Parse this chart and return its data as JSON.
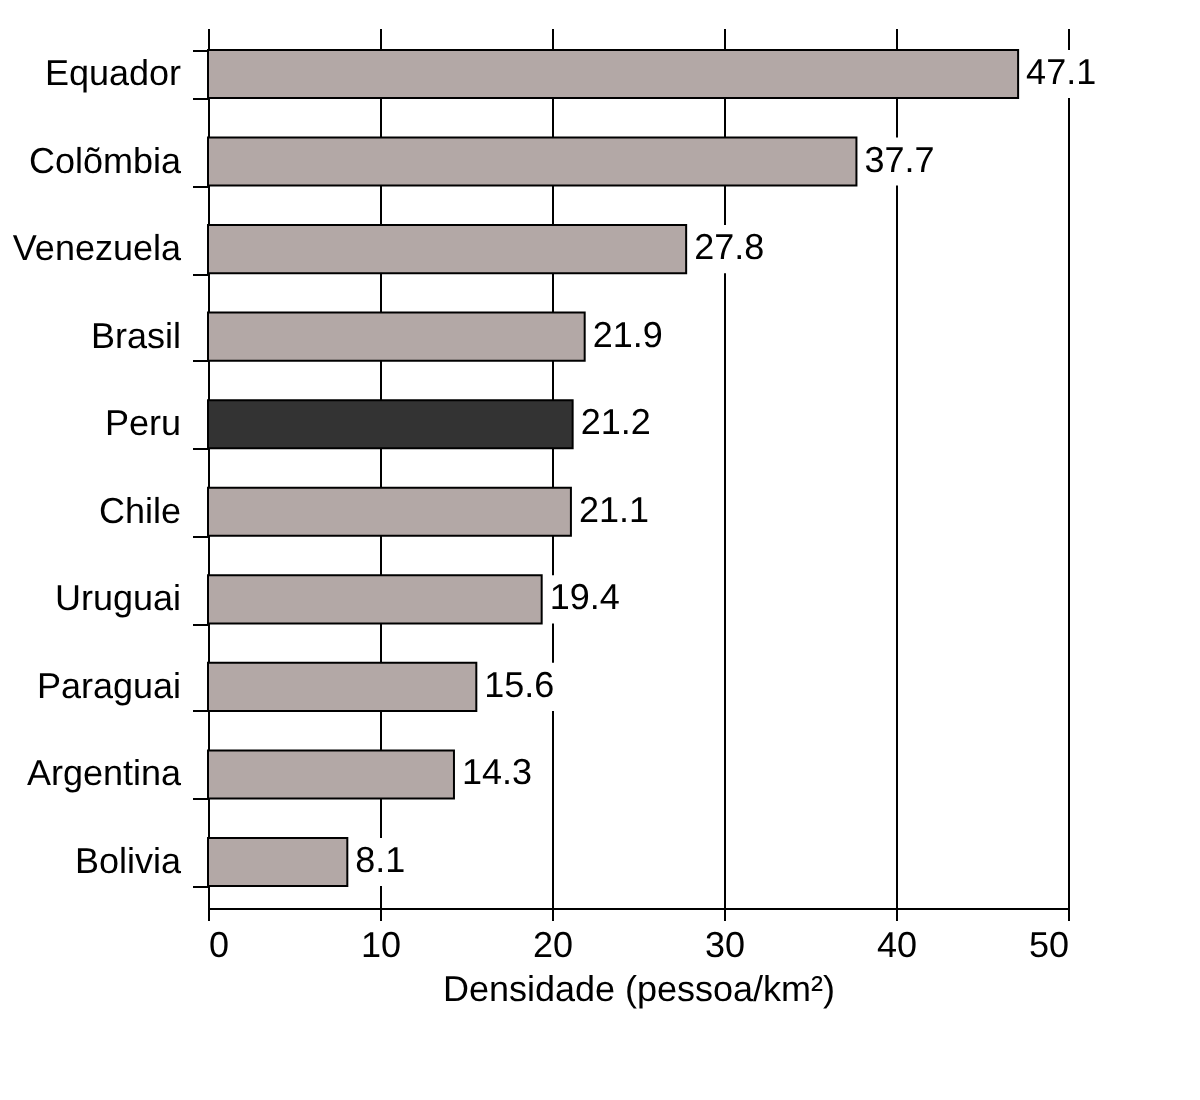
{
  "chart_data": {
    "type": "bar",
    "orientation": "horizontal",
    "categories": [
      "Equador",
      "Colõmbia",
      "Venezuela",
      "Brasil",
      "Peru",
      "Chile",
      "Uruguai",
      "Paraguai",
      "Argentina",
      "Bolivia"
    ],
    "values": [
      47.1,
      37.7,
      27.8,
      21.9,
      21.2,
      21.1,
      19.4,
      15.6,
      14.3,
      8.1
    ],
    "colors": [
      "#b3a8a6",
      "#b3a8a6",
      "#b3a8a6",
      "#b3a8a6",
      "#333333",
      "#b3a8a6",
      "#b3a8a6",
      "#b3a8a6",
      "#b3a8a6",
      "#b3a8a6"
    ],
    "xlabel": "Densidade (pessoa/km²)",
    "xlim": [
      0,
      50
    ],
    "xticks": [
      0,
      10,
      20,
      30,
      40,
      50
    ],
    "grid": "x",
    "data_labels": true
  }
}
